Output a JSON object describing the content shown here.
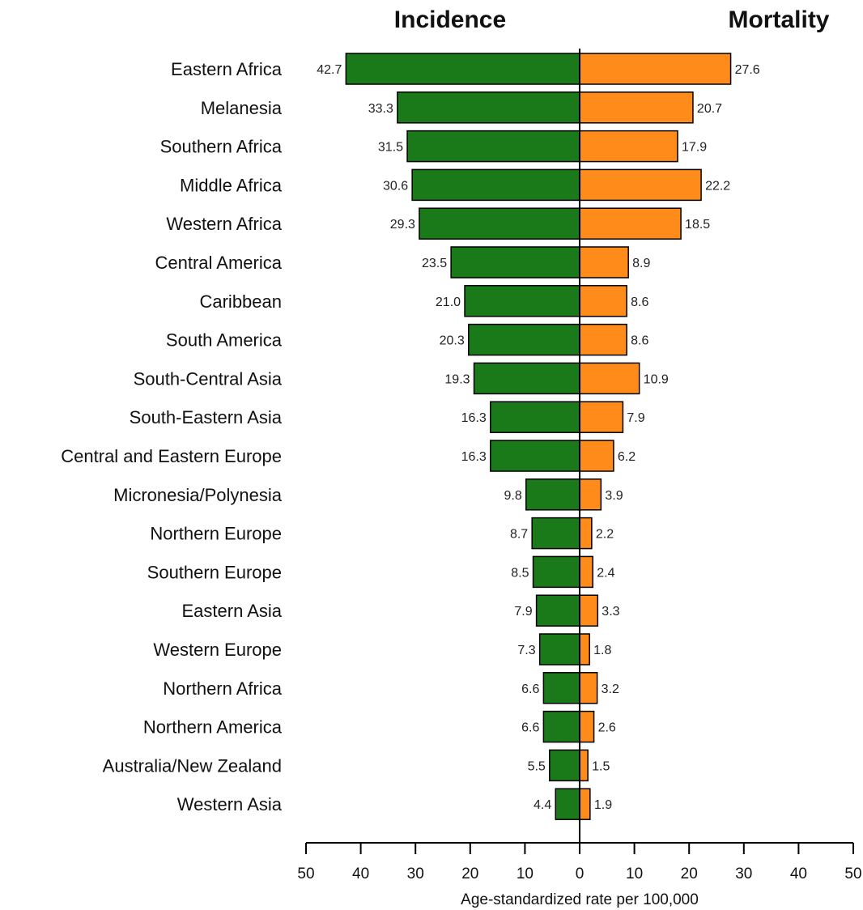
{
  "chart_data": {
    "type": "bar",
    "categories": [
      "Eastern Africa",
      "Melanesia",
      "Southern Africa",
      "Middle Africa",
      "Western Africa",
      "Central America",
      "Caribbean",
      "South America",
      "South-Central Asia",
      "South-Eastern Asia",
      "Central and Eastern Europe",
      "Micronesia/Polynesia",
      "Northern Europe",
      "Southern Europe",
      "Eastern Asia",
      "Western Europe",
      "Northern Africa",
      "Northern America",
      "Australia/New Zealand",
      "Western Asia"
    ],
    "series": [
      {
        "name": "Incidence",
        "color": "#1a7a1a",
        "values": [
          42.7,
          33.3,
          31.5,
          30.6,
          29.3,
          23.5,
          21.0,
          20.3,
          19.3,
          16.3,
          16.3,
          9.8,
          8.7,
          8.5,
          7.9,
          7.3,
          6.6,
          6.6,
          5.5,
          4.4
        ],
        "labels": [
          "42.7",
          "33.3",
          "31.5",
          "30.6",
          "29.3",
          "23.5",
          "21.0",
          "20.3",
          "19.3",
          "16.3",
          "16.3",
          "9.8",
          "8.7",
          "8.5",
          "7.9",
          "7.3",
          "6.6",
          "6.6",
          "5.5",
          "4.4"
        ]
      },
      {
        "name": "Mortality",
        "color": "#ff8c1a",
        "values": [
          27.6,
          20.7,
          17.9,
          22.2,
          18.5,
          8.9,
          8.6,
          8.6,
          10.9,
          7.9,
          6.2,
          3.9,
          2.2,
          2.4,
          3.3,
          1.8,
          3.2,
          2.6,
          1.5,
          1.9
        ],
        "labels": [
          "27.6",
          "20.7",
          "17.9",
          "22.2",
          "18.5",
          "8.9",
          "8.6",
          "8.6",
          "10.9",
          "7.9",
          "6.2",
          "3.9",
          "2.2",
          "2.4",
          "3.3",
          "1.8",
          "3.2",
          "2.6",
          "1.5",
          "1.9"
        ]
      }
    ],
    "x_ticks": [
      "50",
      "40",
      "30",
      "20",
      "10",
      "0",
      "10",
      "20",
      "30",
      "40",
      "50"
    ],
    "xlabel": "Age-standardized rate per 100,000",
    "xlim": [
      -50,
      50
    ],
    "grid": false
  }
}
